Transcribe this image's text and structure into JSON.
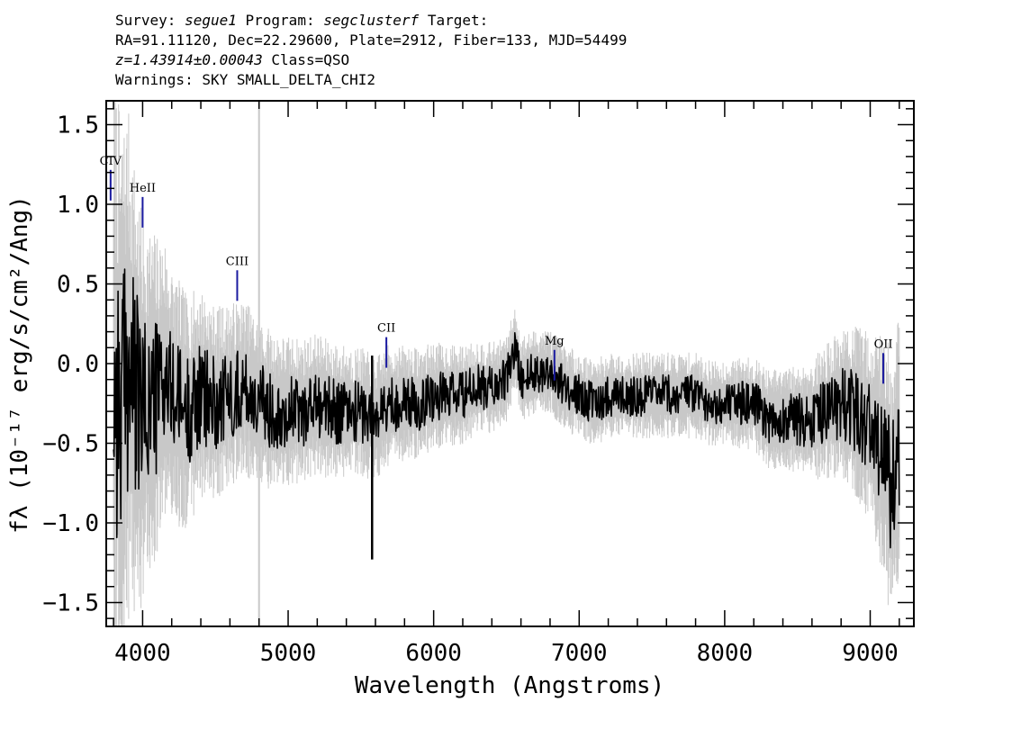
{
  "header": {
    "survey_label": "Survey:",
    "survey": "segue1",
    "program_label": "Program:",
    "program": "segclusterf",
    "target_label": "Target:",
    "line2": "RA=91.11120, Dec=22.29600, Plate=2912, Fiber=133, MJD=54499",
    "redshift": "z=1.43914±0.00043",
    "class": "Class=QSO",
    "warnings": "Warnings: SKY SMALL_DELTA_CHI2"
  },
  "chart_data": {
    "type": "line",
    "xlabel": "Wavelength (Angstroms)",
    "ylabel": "fλ (10⁻¹⁷ erg/s/cm²/Ang)",
    "xlim": [
      3750,
      9300
    ],
    "ylim": [
      -1.65,
      1.65
    ],
    "x_ticks": [
      4000,
      5000,
      6000,
      7000,
      8000,
      9000
    ],
    "x_tick_labels": [
      "4000",
      "5000",
      "6000",
      "7000",
      "8000",
      "9000"
    ],
    "y_ticks": [
      -1.5,
      -1.0,
      -0.5,
      0.0,
      0.5,
      1.0,
      1.5
    ],
    "y_tick_labels": [
      "−1.5",
      "−1.0",
      "−0.5",
      "0.0",
      "0.5",
      "1.0",
      "1.5"
    ],
    "grid": false,
    "colors": {
      "flux": "#000000",
      "error_band": "#c8c8c8",
      "line_markers": "#1a1aa0"
    },
    "series": [
      {
        "style": "black flux line",
        "x": [
          3800,
          3850,
          3900,
          3950,
          4000,
          4050,
          4100,
          4150,
          4200,
          4300,
          4400,
          4500,
          4600,
          4700,
          4800,
          4900,
          5000,
          5100,
          5200,
          5300,
          5400,
          5500,
          5600,
          5700,
          5800,
          5900,
          6000,
          6100,
          6200,
          6300,
          6400,
          6500,
          6560,
          6600,
          6700,
          6800,
          6900,
          7000,
          7100,
          7200,
          7300,
          7400,
          7500,
          7600,
          7700,
          7800,
          7900,
          8000,
          8100,
          8200,
          8300,
          8400,
          8500,
          8600,
          8700,
          8800,
          8900,
          9000,
          9050,
          9100,
          9150,
          9200
        ],
        "y": [
          -0.1,
          -0.3,
          0.0,
          -0.2,
          -0.3,
          -0.25,
          -0.2,
          -0.1,
          -0.2,
          -0.3,
          -0.2,
          -0.25,
          -0.2,
          -0.15,
          -0.25,
          -0.3,
          -0.3,
          -0.3,
          -0.25,
          -0.3,
          -0.3,
          -0.3,
          -0.35,
          -0.25,
          -0.25,
          -0.25,
          -0.2,
          -0.2,
          -0.2,
          -0.15,
          -0.15,
          -0.1,
          0.1,
          -0.1,
          -0.05,
          -0.05,
          -0.15,
          -0.2,
          -0.25,
          -0.2,
          -0.2,
          -0.2,
          -0.2,
          -0.2,
          -0.2,
          -0.2,
          -0.25,
          -0.25,
          -0.25,
          -0.25,
          -0.35,
          -0.35,
          -0.35,
          -0.35,
          -0.3,
          -0.25,
          -0.3,
          -0.4,
          -0.5,
          -0.6,
          -0.8,
          -0.5
        ]
      },
      {
        "style": "grey error band",
        "x": [
          3800,
          3900,
          4000,
          4200,
          4500,
          5000,
          5500,
          6000,
          6500,
          7000,
          7500,
          8000,
          8500,
          8800,
          9000,
          9100,
          9200
        ],
        "y_half_width": [
          1.5,
          1.2,
          0.9,
          0.6,
          0.45,
          0.35,
          0.3,
          0.25,
          0.2,
          0.2,
          0.2,
          0.2,
          0.25,
          0.35,
          0.45,
          0.6,
          0.7
        ]
      }
    ],
    "annotations": [
      {
        "label": "CIV",
        "x": 3780,
        "y": 1.25
      },
      {
        "label": "HeII",
        "x": 4000,
        "y": 1.08
      },
      {
        "label": "CIII",
        "x": 4650,
        "y": 0.62
      },
      {
        "label": "CII",
        "x": 5675,
        "y": 0.2
      },
      {
        "label": "Mg",
        "x": 6830,
        "y": 0.12
      },
      {
        "label": "OII",
        "x": 9090,
        "y": 0.1
      }
    ]
  }
}
